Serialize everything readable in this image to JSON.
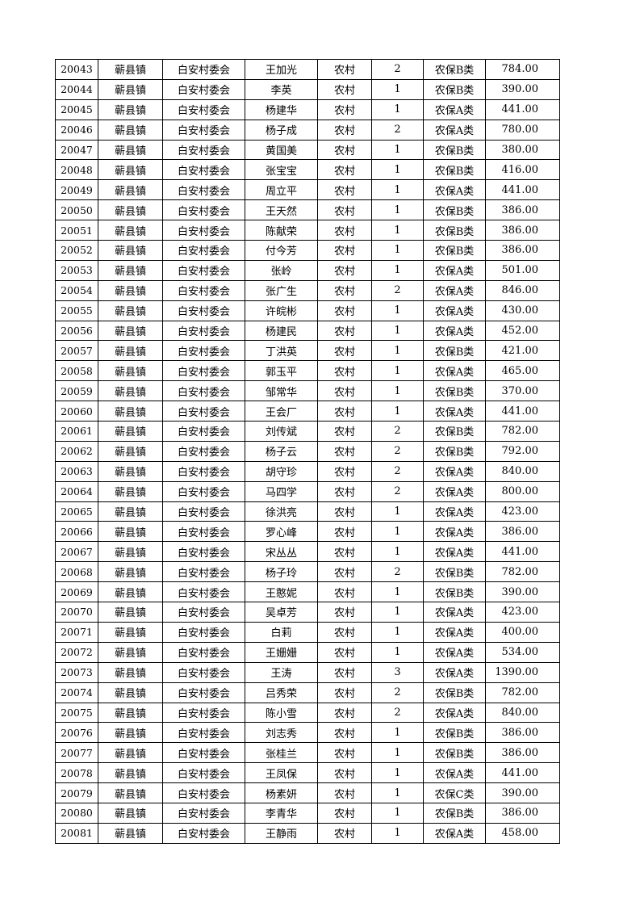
{
  "table": {
    "rows": [
      [
        "20043",
        "蕲县镇",
        "白安村委会",
        "王加光",
        "农村",
        "2",
        "农保B类",
        "784.00"
      ],
      [
        "20044",
        "蕲县镇",
        "白安村委会",
        "李英",
        "农村",
        "1",
        "农保B类",
        "390.00"
      ],
      [
        "20045",
        "蕲县镇",
        "白安村委会",
        "杨建华",
        "农村",
        "1",
        "农保A类",
        "441.00"
      ],
      [
        "20046",
        "蕲县镇",
        "白安村委会",
        "杨子成",
        "农村",
        "2",
        "农保A类",
        "780.00"
      ],
      [
        "20047",
        "蕲县镇",
        "白安村委会",
        "黄国美",
        "农村",
        "1",
        "农保B类",
        "380.00"
      ],
      [
        "20048",
        "蕲县镇",
        "白安村委会",
        "张宝宝",
        "农村",
        "1",
        "农保B类",
        "416.00"
      ],
      [
        "20049",
        "蕲县镇",
        "白安村委会",
        "周立平",
        "农村",
        "1",
        "农保A类",
        "441.00"
      ],
      [
        "20050",
        "蕲县镇",
        "白安村委会",
        "王天然",
        "农村",
        "1",
        "农保B类",
        "386.00"
      ],
      [
        "20051",
        "蕲县镇",
        "白安村委会",
        "陈献荣",
        "农村",
        "1",
        "农保B类",
        "386.00"
      ],
      [
        "20052",
        "蕲县镇",
        "白安村委会",
        "付今芳",
        "农村",
        "1",
        "农保B类",
        "386.00"
      ],
      [
        "20053",
        "蕲县镇",
        "白安村委会",
        "张岭",
        "农村",
        "1",
        "农保A类",
        "501.00"
      ],
      [
        "20054",
        "蕲县镇",
        "白安村委会",
        "张广生",
        "农村",
        "2",
        "农保A类",
        "846.00"
      ],
      [
        "20055",
        "蕲县镇",
        "白安村委会",
        "许皖彬",
        "农村",
        "1",
        "农保A类",
        "430.00"
      ],
      [
        "20056",
        "蕲县镇",
        "白安村委会",
        "杨建民",
        "农村",
        "1",
        "农保A类",
        "452.00"
      ],
      [
        "20057",
        "蕲县镇",
        "白安村委会",
        "丁洪英",
        "农村",
        "1",
        "农保B类",
        "421.00"
      ],
      [
        "20058",
        "蕲县镇",
        "白安村委会",
        "郭玉平",
        "农村",
        "1",
        "农保A类",
        "465.00"
      ],
      [
        "20059",
        "蕲县镇",
        "白安村委会",
        "邹常华",
        "农村",
        "1",
        "农保B类",
        "370.00"
      ],
      [
        "20060",
        "蕲县镇",
        "白安村委会",
        "王会厂",
        "农村",
        "1",
        "农保A类",
        "441.00"
      ],
      [
        "20061",
        "蕲县镇",
        "白安村委会",
        "刘传斌",
        "农村",
        "2",
        "农保B类",
        "782.00"
      ],
      [
        "20062",
        "蕲县镇",
        "白安村委会",
        "杨子云",
        "农村",
        "2",
        "农保B类",
        "792.00"
      ],
      [
        "20063",
        "蕲县镇",
        "白安村委会",
        "胡守珍",
        "农村",
        "2",
        "农保A类",
        "840.00"
      ],
      [
        "20064",
        "蕲县镇",
        "白安村委会",
        "马四学",
        "农村",
        "2",
        "农保A类",
        "800.00"
      ],
      [
        "20065",
        "蕲县镇",
        "白安村委会",
        "徐洪亮",
        "农村",
        "1",
        "农保A类",
        "423.00"
      ],
      [
        "20066",
        "蕲县镇",
        "白安村委会",
        "罗心峰",
        "农村",
        "1",
        "农保A类",
        "386.00"
      ],
      [
        "20067",
        "蕲县镇",
        "白安村委会",
        "宋丛丛",
        "农村",
        "1",
        "农保A类",
        "441.00"
      ],
      [
        "20068",
        "蕲县镇",
        "白安村委会",
        "杨子玲",
        "农村",
        "2",
        "农保B类",
        "782.00"
      ],
      [
        "20069",
        "蕲县镇",
        "白安村委会",
        "王憨妮",
        "农村",
        "1",
        "农保B类",
        "390.00"
      ],
      [
        "20070",
        "蕲县镇",
        "白安村委会",
        "吴卓芳",
        "农村",
        "1",
        "农保A类",
        "423.00"
      ],
      [
        "20071",
        "蕲县镇",
        "白安村委会",
        "白莉",
        "农村",
        "1",
        "农保A类",
        "400.00"
      ],
      [
        "20072",
        "蕲县镇",
        "白安村委会",
        "王姗姗",
        "农村",
        "1",
        "农保A类",
        "534.00"
      ],
      [
        "20073",
        "蕲县镇",
        "白安村委会",
        "王涛",
        "农村",
        "3",
        "农保A类",
        "1390.00"
      ],
      [
        "20074",
        "蕲县镇",
        "白安村委会",
        "吕秀荣",
        "农村",
        "2",
        "农保B类",
        "782.00"
      ],
      [
        "20075",
        "蕲县镇",
        "白安村委会",
        "陈小雪",
        "农村",
        "2",
        "农保A类",
        "840.00"
      ],
      [
        "20076",
        "蕲县镇",
        "白安村委会",
        "刘志秀",
        "农村",
        "1",
        "农保B类",
        "386.00"
      ],
      [
        "20077",
        "蕲县镇",
        "白安村委会",
        "张桂兰",
        "农村",
        "1",
        "农保B类",
        "386.00"
      ],
      [
        "20078",
        "蕲县镇",
        "白安村委会",
        "王凤保",
        "农村",
        "1",
        "农保A类",
        "441.00"
      ],
      [
        "20079",
        "蕲县镇",
        "白安村委会",
        "杨素妍",
        "农村",
        "1",
        "农保C类",
        "390.00"
      ],
      [
        "20080",
        "蕲县镇",
        "白安村委会",
        "李青华",
        "农村",
        "1",
        "农保B类",
        "386.00"
      ],
      [
        "20081",
        "蕲县镇",
        "白安村委会",
        "王静雨",
        "农村",
        "1",
        "农保A类",
        "458.00"
      ]
    ]
  }
}
